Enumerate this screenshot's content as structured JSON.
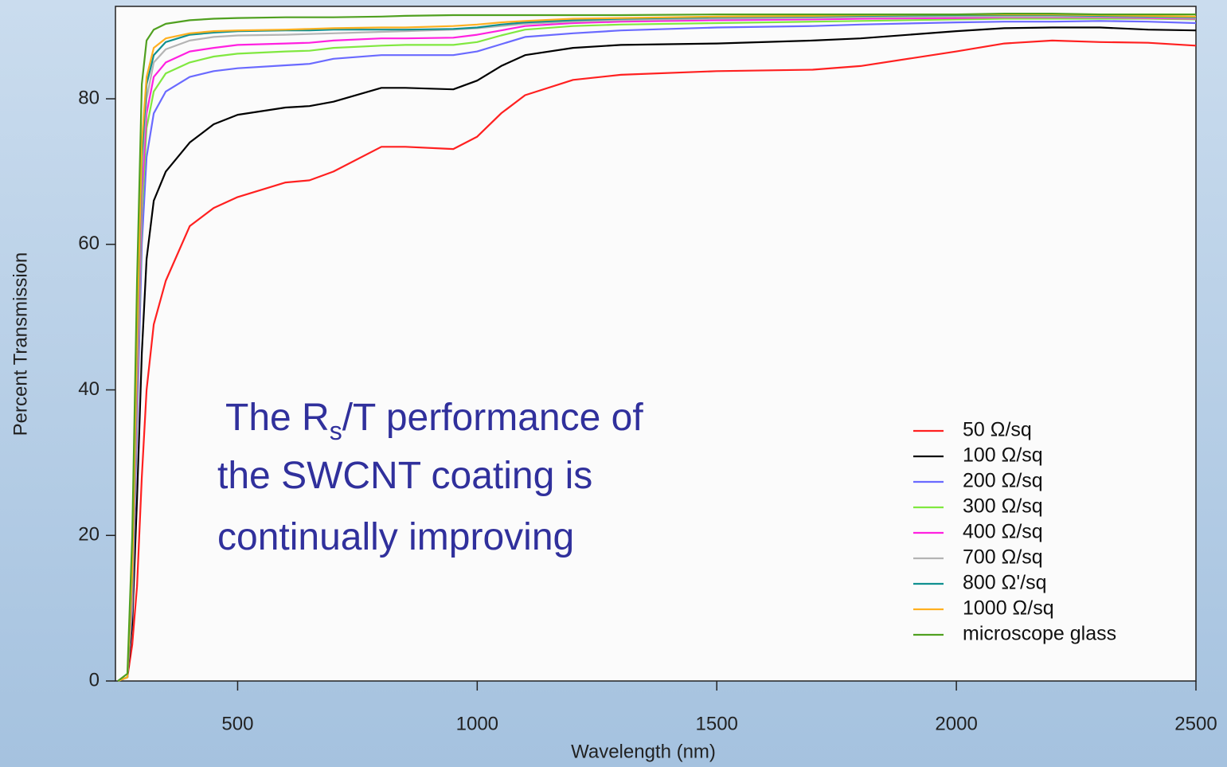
{
  "chart_data": {
    "type": "line",
    "xlabel": "Wavelength (nm)",
    "ylabel": "Percent Transmission",
    "annotation": [
      "The R",
      "s",
      "/T performance of",
      "the SWCNT coating is",
      "continually improving"
    ],
    "xlim": [
      245,
      2500
    ],
    "xticks": [
      500,
      1000,
      1500,
      2000,
      2500
    ],
    "ylim": [
      0,
      92.7
    ],
    "yticks": [
      0,
      20,
      40,
      60,
      80
    ],
    "legend": "lower right",
    "x": [
      250,
      270,
      280,
      290,
      300,
      310,
      325,
      350,
      400,
      450,
      500,
      600,
      650,
      700,
      800,
      850,
      950,
      1000,
      1050,
      1100,
      1200,
      1300,
      1500,
      1700,
      1800,
      2000,
      2100,
      2200,
      2300,
      2400,
      2500
    ],
    "series": [
      {
        "name": "50 Ω/sq",
        "color": "#ff2020",
        "values": [
          0,
          0.5,
          5,
          13,
          28,
          40,
          49,
          55,
          62.5,
          65,
          66.5,
          68.5,
          68.8,
          70,
          73.4,
          73.4,
          73.1,
          74.8,
          78,
          80.5,
          82.6,
          83.3,
          83.8,
          84,
          84.5,
          86.5,
          87.6,
          88,
          87.8,
          87.7,
          87.3
        ]
      },
      {
        "name": "100 Ω/sq",
        "color": "#000000",
        "values": [
          0,
          0.5,
          8,
          25,
          45,
          58,
          66,
          70,
          74,
          76.5,
          77.8,
          78.8,
          79,
          79.6,
          81.5,
          81.5,
          81.3,
          82.5,
          84.5,
          86,
          87,
          87.4,
          87.6,
          88,
          88.3,
          89.3,
          89.7,
          89.8,
          89.8,
          89.5,
          89.4
        ]
      },
      {
        "name": "200 Ω/sq",
        "color": "#6a6aff",
        "values": [
          0,
          0.5,
          10,
          35,
          60,
          72,
          78,
          81,
          83,
          83.8,
          84.2,
          84.6,
          84.8,
          85.5,
          86,
          86,
          86,
          86.5,
          87.5,
          88.5,
          89,
          89.4,
          89.8,
          90,
          90.2,
          90.5,
          90.6,
          90.6,
          90.7,
          90.6,
          90.4
        ]
      },
      {
        "name": "300 Ω/sq",
        "color": "#80e840",
        "values": [
          0,
          0.5,
          11,
          38,
          64,
          76,
          81,
          83.5,
          85,
          85.8,
          86.2,
          86.5,
          86.6,
          87,
          87.3,
          87.4,
          87.4,
          87.8,
          88.7,
          89.5,
          90,
          90.2,
          90.4,
          90.6,
          90.7,
          90.9,
          91,
          91,
          91,
          91,
          90.9
        ]
      },
      {
        "name": "400 Ω/sq",
        "color": "#ff20e0",
        "values": [
          0,
          0.5,
          12,
          40,
          67,
          78,
          83,
          85,
          86.5,
          87,
          87.4,
          87.6,
          87.7,
          88,
          88.3,
          88.3,
          88.4,
          88.8,
          89.4,
          90,
          90.4,
          90.6,
          90.8,
          90.9,
          91,
          91.1,
          91.2,
          91.2,
          91.2,
          91.1,
          91
        ]
      },
      {
        "name": "700 Ω/sq",
        "color": "#b4b4b4",
        "values": [
          0,
          0.5,
          13,
          43,
          70,
          80,
          85,
          86.8,
          88,
          88.5,
          88.7,
          88.8,
          88.9,
          89,
          89.2,
          89.3,
          89.5,
          89.7,
          90,
          90.3,
          90.6,
          90.8,
          91,
          91.1,
          91.2,
          91.3,
          91.3,
          91.3,
          91.3,
          91.2,
          91.1
        ]
      },
      {
        "name": "800 Ω'/sq",
        "color": "#109090",
        "values": [
          0,
          0.5,
          14,
          45,
          72,
          82,
          86,
          87.8,
          88.8,
          89.1,
          89.3,
          89.4,
          89.4,
          89.5,
          89.5,
          89.5,
          89.6,
          89.8,
          90.2,
          90.5,
          90.8,
          91,
          91.2,
          91.3,
          91.4,
          91.5,
          91.5,
          91.5,
          91.4,
          91.3,
          91.2
        ]
      },
      {
        "name": "1000 Ω/sq",
        "color": "#ffb020",
        "values": [
          0,
          0.5,
          15,
          47,
          74,
          83,
          87,
          88.3,
          89,
          89.3,
          89.4,
          89.5,
          89.6,
          89.7,
          89.8,
          89.8,
          90,
          90.2,
          90.5,
          90.7,
          91,
          91.1,
          91.3,
          91.4,
          91.5,
          91.6,
          91.6,
          91.6,
          91.5,
          91.4,
          91.3
        ]
      },
      {
        "name": "microscope glass",
        "color": "#50a020",
        "values": [
          0,
          1,
          20,
          55,
          82,
          88,
          89.5,
          90.3,
          90.8,
          91,
          91.1,
          91.2,
          91.2,
          91.2,
          91.3,
          91.4,
          91.5,
          91.5,
          91.5,
          91.5,
          91.5,
          91.5,
          91.6,
          91.6,
          91.6,
          91.6,
          91.7,
          91.7,
          91.6,
          91.6,
          91.6
        ]
      }
    ]
  }
}
